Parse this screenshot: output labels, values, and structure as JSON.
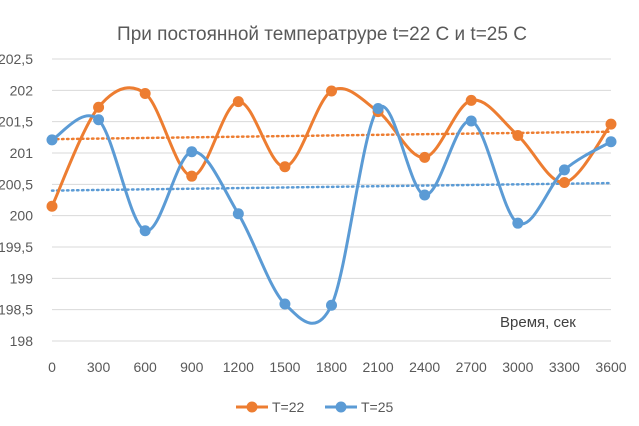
{
  "chart_data": {
    "type": "line",
    "title": "При постоянной температруре t=22 С и t=25 С",
    "annotation": "Время, сек",
    "xlabel": "",
    "ylabel": "",
    "categories": [
      0,
      300,
      600,
      900,
      1200,
      1500,
      1800,
      2100,
      2400,
      2700,
      3000,
      3300,
      3600
    ],
    "x_tick_labels": [
      "0",
      "300",
      "600",
      "900",
      "1200",
      "1500",
      "1800",
      "2100",
      "2400",
      "2700",
      "3000",
      "3300",
      "3600"
    ],
    "y_tick_labels": [
      "198",
      "198,5",
      "199",
      "199,5",
      "200",
      "200,5",
      "201",
      "201,5",
      "202",
      "202,5"
    ],
    "ylim": [
      198,
      202.5
    ],
    "grid": true,
    "legend_position": "bottom",
    "smooth_lines": true,
    "series": [
      {
        "name": "T=22",
        "color": "#ED7D31",
        "values": [
          200.15,
          201.73,
          201.95,
          200.63,
          201.82,
          200.78,
          201.99,
          201.66,
          200.93,
          201.84,
          201.28,
          200.53,
          201.46
        ],
        "trendline": {
          "type": "linear",
          "style": "dotted",
          "start": 201.22,
          "end": 201.34
        }
      },
      {
        "name": "T=25",
        "color": "#5B9BD5",
        "values": [
          201.21,
          201.53,
          199.76,
          201.02,
          200.03,
          198.59,
          198.57,
          201.71,
          200.33,
          201.51,
          199.88,
          200.73,
          201.18
        ],
        "trendline": {
          "type": "linear",
          "style": "dotted",
          "start": 200.4,
          "end": 200.52
        }
      }
    ]
  }
}
